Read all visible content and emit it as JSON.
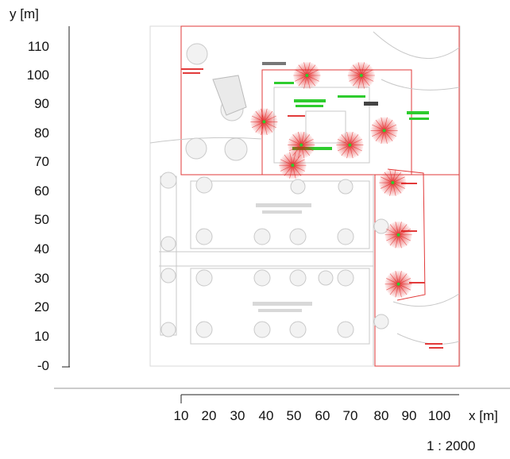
{
  "axes": {
    "y_label": "y [m]",
    "x_label": "x [m]",
    "y_ticks": [
      "110",
      "100",
      "90",
      "80",
      "70",
      "60",
      "50",
      "40",
      "30",
      "20",
      "10",
      "-0"
    ],
    "x_ticks": [
      "10",
      "20",
      "30",
      "40",
      "50",
      "60",
      "70",
      "80",
      "90",
      "100"
    ]
  },
  "scale_text": "1 : 2000",
  "colors": {
    "boundary": "#e23a3a",
    "plan_lines": "#bfbfbf",
    "trees": "#cfcfcf",
    "light_cone": "#e01919",
    "label_green": "#2ecc2e"
  },
  "light_sources": [
    {
      "x": 54,
      "y": 100
    },
    {
      "x": 73,
      "y": 100
    },
    {
      "x": 39,
      "y": 84
    },
    {
      "x": 52,
      "y": 76
    },
    {
      "x": 69,
      "y": 76
    },
    {
      "x": 81,
      "y": 81
    },
    {
      "x": 49,
      "y": 69
    },
    {
      "x": 84,
      "y": 63
    },
    {
      "x": 86,
      "y": 45
    },
    {
      "x": 86,
      "y": 28
    }
  ]
}
